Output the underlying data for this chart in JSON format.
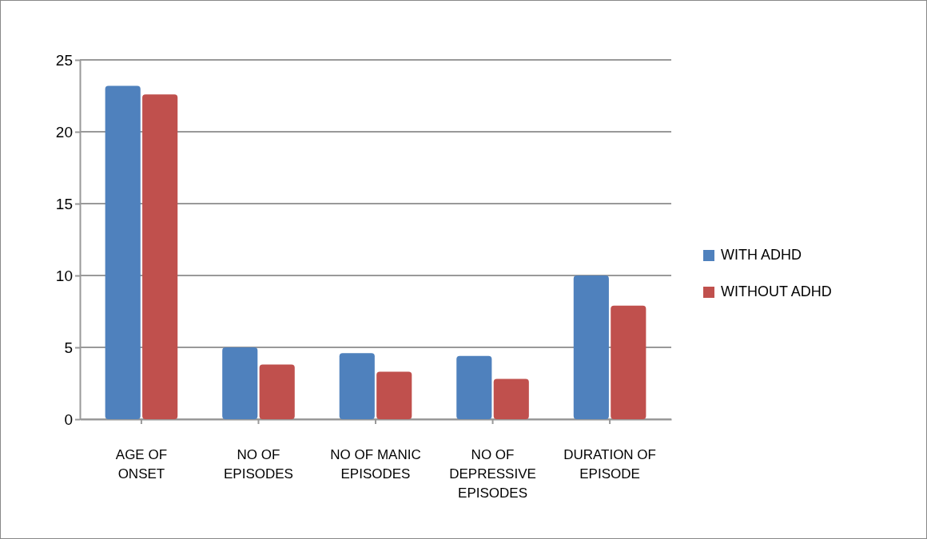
{
  "chart_data": {
    "type": "bar",
    "categories": [
      "AGE OF ONSET",
      "NO OF EPISODES",
      "NO OF MANIC EPISODES",
      "NO OF DEPRESSIVE EPISODES",
      "DURATION OF EPISODE"
    ],
    "series": [
      {
        "name": "WITH ADHD",
        "color": "#4f81bd",
        "values": [
          23.2,
          5.0,
          4.6,
          4.4,
          10.0
        ]
      },
      {
        "name": "WITHOUT ADHD",
        "color": "#c0504d",
        "values": [
          22.6,
          3.8,
          3.3,
          2.8,
          7.9
        ]
      }
    ],
    "ylim": [
      0,
      25
    ],
    "yticks": [
      0,
      5,
      10,
      15,
      20,
      25
    ],
    "grid": "y",
    "legend": "right"
  }
}
